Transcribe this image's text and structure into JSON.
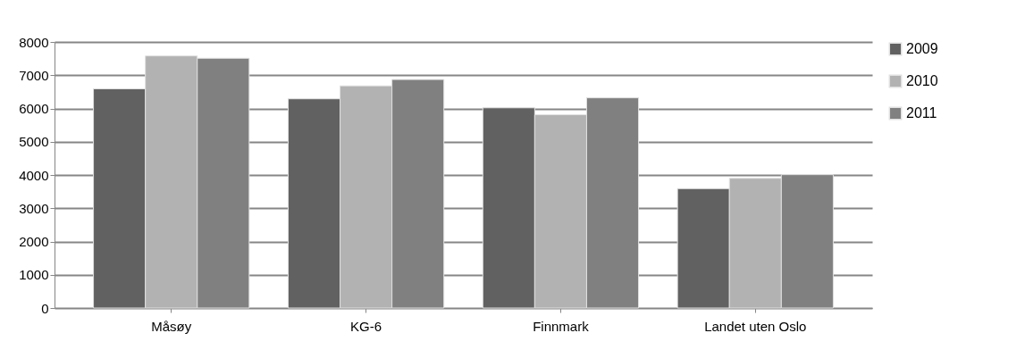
{
  "chart_data": {
    "type": "bar",
    "categories": [
      "Måsøy",
      "KG-6",
      "Finnmark",
      "Landet uten Oslo"
    ],
    "series": [
      {
        "name": "2009",
        "color": "#616161",
        "values": [
          6590,
          6290,
          6020,
          3590
        ]
      },
      {
        "name": "2010",
        "color": "#b2b2b2",
        "values": [
          7580,
          6680,
          5810,
          3900
        ]
      },
      {
        "name": "2011",
        "color": "#808080",
        "values": [
          7510,
          6870,
          6320,
          4010
        ]
      }
    ],
    "ylim": [
      0,
      8000
    ],
    "yticks": [
      0,
      1000,
      2000,
      3000,
      4000,
      5000,
      6000,
      7000,
      8000
    ],
    "grid": "y",
    "legend": "right"
  }
}
